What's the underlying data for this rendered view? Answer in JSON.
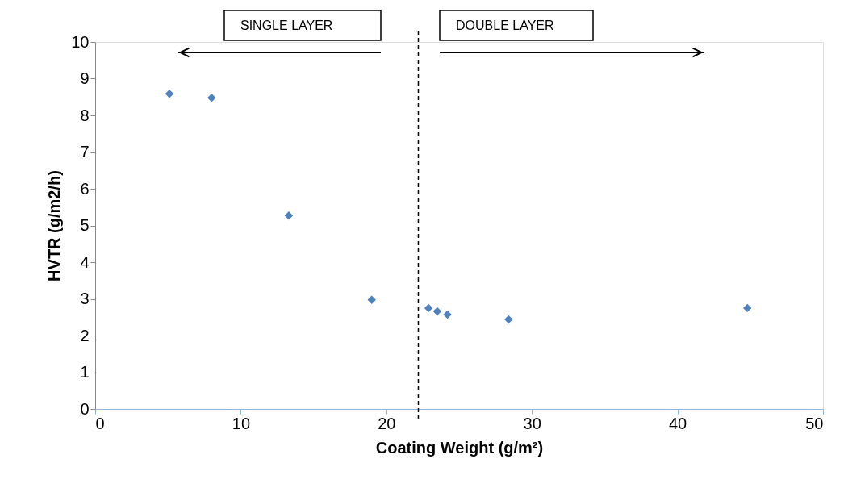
{
  "chart_data": {
    "type": "scatter",
    "xlabel": "Coating Weight (g/m²)",
    "ylabel": "HVTR (g/m2/h)",
    "x": [
      5.1,
      8.0,
      13.3,
      19.0,
      22.9,
      23.5,
      24.2,
      28.4,
      44.8
    ],
    "series": [
      {
        "color": "#4f81bd",
        "values": [
          8.59,
          8.48,
          5.27,
          2.97,
          2.75,
          2.66,
          2.57,
          2.44,
          2.75
        ]
      }
    ],
    "xlim": [
      0,
      50
    ],
    "xticks": [
      0,
      10,
      20,
      30,
      40,
      50
    ],
    "ylim": [
      0,
      10
    ],
    "yticks": [
      0,
      1,
      2,
      3,
      4,
      5,
      6,
      7,
      8,
      9,
      10
    ],
    "grid": false,
    "marker": "diamond",
    "ref_lines": [
      {
        "axis": "x",
        "value": 22.2,
        "line_style": "dashed",
        "color": "#000000"
      }
    ],
    "annotations": [
      "SINGLE LAYER",
      "DOUBLE LAYER"
    ]
  }
}
